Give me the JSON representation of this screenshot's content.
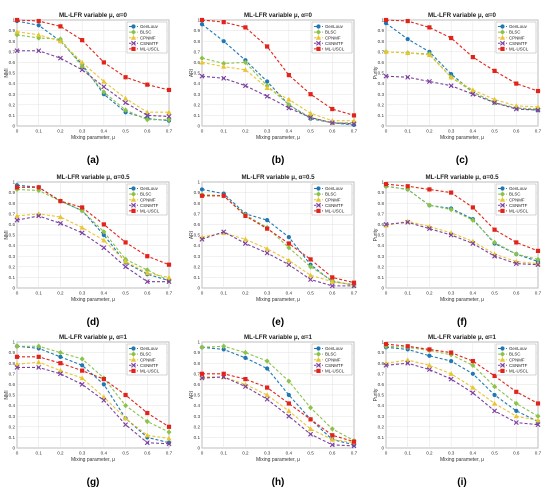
{
  "chart_data": [
    {
      "type": "line",
      "title": "ML-LFR variable μ, α=0",
      "xlabel": "Mixing parameter, μ",
      "ylabel": "NMI",
      "caption": "(a)",
      "x": [
        0,
        0.1,
        0.2,
        0.3,
        0.4,
        0.5,
        0.6,
        0.7
      ],
      "xlim": [
        0,
        0.7
      ],
      "ylim": [
        0,
        1
      ],
      "grid": true,
      "legend": "top-right",
      "series": [
        {
          "name": "GenLouv",
          "values": [
            0.99,
            0.95,
            0.8,
            0.58,
            0.3,
            0.13,
            0.07,
            0.05
          ]
        },
        {
          "name": "BLSC",
          "values": [
            0.86,
            0.83,
            0.82,
            0.56,
            0.32,
            0.15,
            0.06,
            0.06
          ]
        },
        {
          "name": "CPNMF",
          "values": [
            0.89,
            0.86,
            0.8,
            0.6,
            0.42,
            0.26,
            0.13,
            0.13
          ]
        },
        {
          "name": "CSNMTF",
          "values": [
            0.71,
            0.71,
            0.64,
            0.53,
            0.37,
            0.22,
            0.1,
            0.09
          ]
        },
        {
          "name": "ML-USCL",
          "values": [
            1.0,
            0.99,
            0.94,
            0.81,
            0.6,
            0.46,
            0.39,
            0.34
          ]
        }
      ]
    },
    {
      "type": "line",
      "title": "ML-LFR variable μ, α=0",
      "xlabel": "Mixing parameter, μ",
      "ylabel": "ARI",
      "caption": "(b)",
      "x": [
        0,
        0.1,
        0.2,
        0.3,
        0.4,
        0.5,
        0.6,
        0.7
      ],
      "xlim": [
        0,
        0.7
      ],
      "ylim": [
        0,
        1
      ],
      "grid": true,
      "legend": "top-right",
      "series": [
        {
          "name": "GenLouv",
          "values": [
            0.96,
            0.8,
            0.62,
            0.42,
            0.2,
            0.07,
            0.03,
            0.01
          ]
        },
        {
          "name": "BLSC",
          "values": [
            0.64,
            0.59,
            0.6,
            0.38,
            0.2,
            0.08,
            0.03,
            0.03
          ]
        },
        {
          "name": "CPNMF",
          "values": [
            0.6,
            0.56,
            0.53,
            0.36,
            0.25,
            0.12,
            0.05,
            0.05
          ]
        },
        {
          "name": "CSNMTF",
          "values": [
            0.47,
            0.45,
            0.38,
            0.28,
            0.17,
            0.08,
            0.03,
            0.02
          ]
        },
        {
          "name": "ML-USCL",
          "values": [
            1.0,
            0.98,
            0.93,
            0.75,
            0.48,
            0.3,
            0.16,
            0.1
          ]
        }
      ]
    },
    {
      "type": "line",
      "title": "ML-LFR variable μ, α=0",
      "xlabel": "Mixing parameter, μ",
      "ylabel": "Purity",
      "caption": "(c)",
      "x": [
        0,
        0.1,
        0.2,
        0.3,
        0.4,
        0.5,
        0.6,
        0.7
      ],
      "xlim": [
        0,
        0.7
      ],
      "ylim": [
        0,
        1
      ],
      "grid": true,
      "legend": "top-right",
      "series": [
        {
          "name": "GenLouv",
          "values": [
            0.97,
            0.82,
            0.7,
            0.49,
            0.32,
            0.22,
            0.17,
            0.15
          ]
        },
        {
          "name": "BLSC",
          "values": [
            0.7,
            0.69,
            0.68,
            0.46,
            0.32,
            0.22,
            0.17,
            0.16
          ]
        },
        {
          "name": "CPNMF",
          "values": [
            0.7,
            0.69,
            0.67,
            0.46,
            0.34,
            0.25,
            0.19,
            0.18
          ]
        },
        {
          "name": "CSNMTF",
          "values": [
            0.47,
            0.46,
            0.42,
            0.38,
            0.3,
            0.22,
            0.16,
            0.15
          ]
        },
        {
          "name": "ML-USCL",
          "values": [
            1.0,
            0.99,
            0.93,
            0.83,
            0.65,
            0.52,
            0.4,
            0.33
          ]
        }
      ]
    },
    {
      "type": "line",
      "title": "ML-LFR variable μ, α=0.5",
      "xlabel": "Mixing parameter, μ",
      "ylabel": "NMI",
      "caption": "(d)",
      "x": [
        0,
        0.1,
        0.2,
        0.3,
        0.4,
        0.5,
        0.6,
        0.7
      ],
      "xlim": [
        0,
        0.7
      ],
      "ylim": [
        0,
        1
      ],
      "grid": true,
      "legend": "top-right",
      "series": [
        {
          "name": "GenLouv",
          "values": [
            0.97,
            0.95,
            0.82,
            0.73,
            0.5,
            0.24,
            0.13,
            0.07
          ]
        },
        {
          "name": "BLSC",
          "values": [
            0.93,
            0.92,
            0.82,
            0.73,
            0.53,
            0.27,
            0.17,
            0.07
          ]
        },
        {
          "name": "CPNMF",
          "values": [
            0.68,
            0.7,
            0.67,
            0.57,
            0.45,
            0.25,
            0.14,
            0.1
          ]
        },
        {
          "name": "CSNMTF",
          "values": [
            0.64,
            0.68,
            0.61,
            0.52,
            0.38,
            0.2,
            0.06,
            0.06
          ]
        },
        {
          "name": "ML-USCL",
          "values": [
            0.95,
            0.95,
            0.82,
            0.76,
            0.6,
            0.43,
            0.3,
            0.22
          ]
        }
      ]
    },
    {
      "type": "line",
      "title": "ML-LFR variable μ, α=0.5",
      "xlabel": "Mixing parameter, μ",
      "ylabel": "ARI",
      "caption": "(e)",
      "x": [
        0,
        0.1,
        0.2,
        0.3,
        0.4,
        0.5,
        0.6,
        0.7
      ],
      "xlim": [
        0,
        0.7
      ],
      "ylim": [
        0,
        1
      ],
      "grid": true,
      "legend": "top-right",
      "series": [
        {
          "name": "GenLouv",
          "values": [
            0.93,
            0.89,
            0.7,
            0.64,
            0.48,
            0.22,
            0.06,
            0.03
          ]
        },
        {
          "name": "BLSC",
          "values": [
            0.88,
            0.87,
            0.69,
            0.57,
            0.38,
            0.2,
            0.07,
            0.02
          ]
        },
        {
          "name": "CPNMF",
          "values": [
            0.48,
            0.52,
            0.46,
            0.37,
            0.26,
            0.12,
            0.06,
            0.03
          ]
        },
        {
          "name": "CSNMTF",
          "values": [
            0.46,
            0.53,
            0.42,
            0.33,
            0.22,
            0.08,
            0.02,
            0.02
          ]
        },
        {
          "name": "ML-USCL",
          "values": [
            0.87,
            0.87,
            0.68,
            0.56,
            0.42,
            0.27,
            0.1,
            0.05
          ]
        }
      ]
    },
    {
      "type": "line",
      "title": "ML-LFR variable μ, α=0.5",
      "xlabel": "Mixing parameter, μ",
      "ylabel": "Purity",
      "caption": "(f)",
      "x": [
        0,
        0.1,
        0.2,
        0.3,
        0.4,
        0.5,
        0.6,
        0.7
      ],
      "xlim": [
        0,
        0.7
      ],
      "ylim": [
        0,
        1
      ],
      "grid": true,
      "legend": "top-right",
      "series": [
        {
          "name": "GenLouv",
          "values": [
            0.96,
            0.93,
            0.78,
            0.75,
            0.65,
            0.42,
            0.32,
            0.25
          ]
        },
        {
          "name": "BLSC",
          "values": [
            0.96,
            0.93,
            0.78,
            0.74,
            0.64,
            0.43,
            0.32,
            0.27
          ]
        },
        {
          "name": "CPNMF",
          "values": [
            0.59,
            0.63,
            0.58,
            0.52,
            0.44,
            0.32,
            0.25,
            0.23
          ]
        },
        {
          "name": "CSNMTF",
          "values": [
            0.6,
            0.62,
            0.56,
            0.5,
            0.42,
            0.3,
            0.23,
            0.22
          ]
        },
        {
          "name": "ML-USCL",
          "values": [
            0.98,
            0.96,
            0.93,
            0.9,
            0.76,
            0.55,
            0.43,
            0.35
          ]
        }
      ]
    },
    {
      "type": "line",
      "title": "ML-LFR variable μ, α=1",
      "xlabel": "Mixing parameter, μ",
      "ylabel": "NMI",
      "caption": "(g)",
      "x": [
        0,
        0.1,
        0.2,
        0.3,
        0.4,
        0.5,
        0.6,
        0.7
      ],
      "xlim": [
        0,
        0.7
      ],
      "ylim": [
        0,
        1
      ],
      "grid": true,
      "legend": "top-right",
      "series": [
        {
          "name": "GenLouv",
          "values": [
            0.96,
            0.94,
            0.86,
            0.78,
            0.6,
            0.28,
            0.1,
            0.05
          ]
        },
        {
          "name": "BLSC",
          "values": [
            0.96,
            0.96,
            0.9,
            0.84,
            0.66,
            0.4,
            0.25,
            0.15
          ]
        },
        {
          "name": "CPNMF",
          "values": [
            0.79,
            0.81,
            0.73,
            0.66,
            0.48,
            0.28,
            0.12,
            0.09
          ]
        },
        {
          "name": "CSNMTF",
          "values": [
            0.76,
            0.76,
            0.7,
            0.6,
            0.45,
            0.22,
            0.05,
            0.04
          ]
        },
        {
          "name": "ML-USCL",
          "values": [
            0.86,
            0.86,
            0.8,
            0.73,
            0.65,
            0.5,
            0.33,
            0.2
          ]
        }
      ]
    },
    {
      "type": "line",
      "title": "ML-LFR variable μ, α=1",
      "xlabel": "Mixing parameter, μ",
      "ylabel": "ARI",
      "caption": "(h)",
      "x": [
        0,
        0.1,
        0.2,
        0.3,
        0.4,
        0.5,
        0.6,
        0.7
      ],
      "xlim": [
        0,
        0.7
      ],
      "ylim": [
        0,
        1
      ],
      "grid": true,
      "legend": "top-right",
      "series": [
        {
          "name": "GenLouv",
          "values": [
            0.95,
            0.93,
            0.85,
            0.75,
            0.5,
            0.27,
            0.08,
            0.03
          ]
        },
        {
          "name": "BLSC",
          "values": [
            0.95,
            0.96,
            0.9,
            0.82,
            0.63,
            0.38,
            0.18,
            0.07
          ]
        },
        {
          "name": "CPNMF",
          "values": [
            0.67,
            0.67,
            0.6,
            0.5,
            0.35,
            0.18,
            0.08,
            0.05
          ]
        },
        {
          "name": "CSNMTF",
          "values": [
            0.66,
            0.67,
            0.58,
            0.46,
            0.3,
            0.13,
            0.03,
            0.02
          ]
        },
        {
          "name": "ML-USCL",
          "values": [
            0.7,
            0.7,
            0.65,
            0.57,
            0.42,
            0.27,
            0.12,
            0.06
          ]
        }
      ]
    },
    {
      "type": "line",
      "title": "ML-LFR variable μ, α=1",
      "xlabel": "Mixing parameter, μ",
      "ylabel": "Purity",
      "caption": "(i)",
      "x": [
        0,
        0.1,
        0.2,
        0.3,
        0.4,
        0.5,
        0.6,
        0.7
      ],
      "xlim": [
        0,
        0.7
      ],
      "ylim": [
        0,
        1
      ],
      "grid": true,
      "legend": "top-right",
      "series": [
        {
          "name": "GenLouv",
          "values": [
            0.95,
            0.93,
            0.87,
            0.82,
            0.7,
            0.5,
            0.35,
            0.25
          ]
        },
        {
          "name": "BLSC",
          "values": [
            0.96,
            0.95,
            0.92,
            0.88,
            0.78,
            0.58,
            0.42,
            0.3
          ]
        },
        {
          "name": "CPNMF",
          "values": [
            0.8,
            0.83,
            0.78,
            0.7,
            0.57,
            0.42,
            0.3,
            0.26
          ]
        },
        {
          "name": "CSNMTF",
          "values": [
            0.78,
            0.8,
            0.74,
            0.65,
            0.52,
            0.35,
            0.24,
            0.22
          ]
        },
        {
          "name": "ML-USCL",
          "values": [
            0.98,
            0.96,
            0.93,
            0.9,
            0.82,
            0.68,
            0.53,
            0.42
          ]
        }
      ]
    }
  ],
  "series_colors": [
    "#1f77b4",
    "#8bc34a",
    "#e8c531",
    "#7b3fa0",
    "#e2231a"
  ]
}
